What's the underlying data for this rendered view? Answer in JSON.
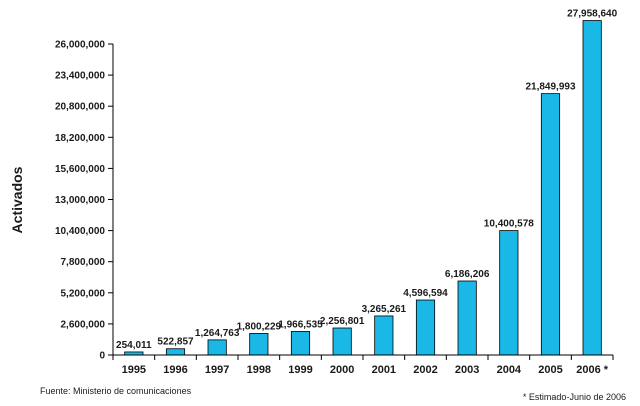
{
  "colors": {
    "bar": "#19b8e6",
    "bar_stroke": "#000000",
    "axis": "#000000"
  },
  "chart_data": {
    "type": "bar",
    "title": "",
    "xlabel": "",
    "ylabel": "Activados",
    "ylim": [
      0,
      26000000
    ],
    "yticks": [
      0,
      2600000,
      5200000,
      7800000,
      10400000,
      13000000,
      15600000,
      18200000,
      20800000,
      23400000,
      26000000
    ],
    "ytick_labels": [
      "0",
      "2,600,000",
      "5,200,000",
      "7,800,000",
      "10,400,000",
      "13,000,000",
      "15,600,000",
      "18,200,000",
      "20,800,000",
      "23,400,000",
      "26,000,000"
    ],
    "categories": [
      "1995",
      "1996",
      "1997",
      "1998",
      "1999",
      "2000",
      "2001",
      "2002",
      "2003",
      "2004",
      "2005",
      "2006 *"
    ],
    "values": [
      254011,
      522857,
      1264763,
      1800229,
      1966535,
      2256801,
      3265261,
      4596594,
      6186206,
      10400578,
      21849993,
      27958640
    ],
    "data_labels": [
      "254,011",
      "522,857",
      "1,264,763",
      "1,800,229",
      "1,966,535",
      "2,256,801",
      "3,265,261",
      "4,596,594",
      "6,186,206",
      "10,400,578",
      "21,849,993",
      "27,958,640"
    ],
    "grid": false,
    "legend": "none"
  },
  "footer": {
    "source": "Fuente: Ministerio de comunicaciones",
    "estimate_note": "* Estimado-Junio de 2006"
  }
}
